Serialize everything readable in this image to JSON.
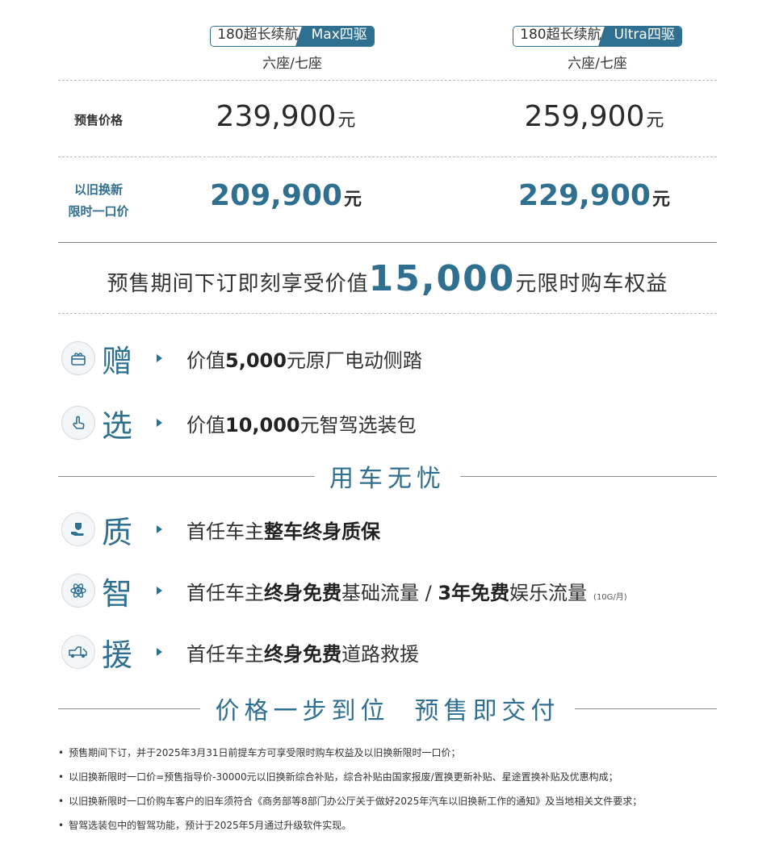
{
  "columns": [
    {
      "range": "180超长续航",
      "trim": "Max四驱",
      "seats": "六座/七座",
      "presale_price": "239,900",
      "tradein_price": "209,900"
    },
    {
      "range": "180超长续航",
      "trim": "Ultra四驱",
      "seats": "六座/七座",
      "presale_price": "259,900",
      "tradein_price": "229,900"
    }
  ],
  "currency_unit": "元",
  "rows": {
    "presale_label": "预售价格",
    "tradein_label_1": "以旧换新",
    "tradein_label_2": "限时一口价"
  },
  "promo": {
    "before": "预售期间下订即刻享受价值",
    "amount": "15,000",
    "after": "元限时购车权益"
  },
  "benefits_gift": [
    {
      "char": "赠",
      "icon": "gift-icon",
      "pre": "价值",
      "bold": "5,000",
      "post": "元原厂电动侧踏"
    },
    {
      "char": "选",
      "icon": "touch-hand-icon",
      "pre": "价值",
      "bold": "10,000",
      "post": "元智驾选装包"
    }
  ],
  "section_worry_free": "用车无忧",
  "benefits_care": [
    {
      "char": "质",
      "icon": "hand-shield-icon",
      "pre": "首任车主",
      "bold": "整车终身质保",
      "mid": "",
      "bold2": "",
      "post": "",
      "small": ""
    },
    {
      "char": "智",
      "icon": "atom-icon",
      "pre": "首任车主",
      "bold": "终身免费",
      "mid": "基础流量 / ",
      "bold2": "3年免费",
      "post": "娱乐流量",
      "small": "(10G/月)"
    },
    {
      "char": "援",
      "icon": "tow-truck-icon",
      "pre": "首任车主",
      "bold": "终身免费",
      "mid": "道路救援",
      "bold2": "",
      "post": "",
      "small": ""
    }
  ],
  "section_delivery": "价格一步到位  预售即交付",
  "notes": [
    "预售期间下订，并于2025年3月31日前提车方可享受限时购车权益及以旧换新限时一口价；",
    "以旧换新限时一口价=预售指导价-30000元以旧换新综合补贴，综合补贴由国家报废/置换更新补贴、星途置换补贴及优惠构成；",
    "以旧换新限时一口价购车客户的旧车须符合《商务部等8部门办公厅关于做好2025年汽车以旧换新工作的通知》及当地相关文件要求；",
    "智驾选装包中的智驾功能，预计于2025年5月通过升级软件实现。"
  ],
  "colors": {
    "accent": "#2f6f8f",
    "text": "#333333"
  }
}
